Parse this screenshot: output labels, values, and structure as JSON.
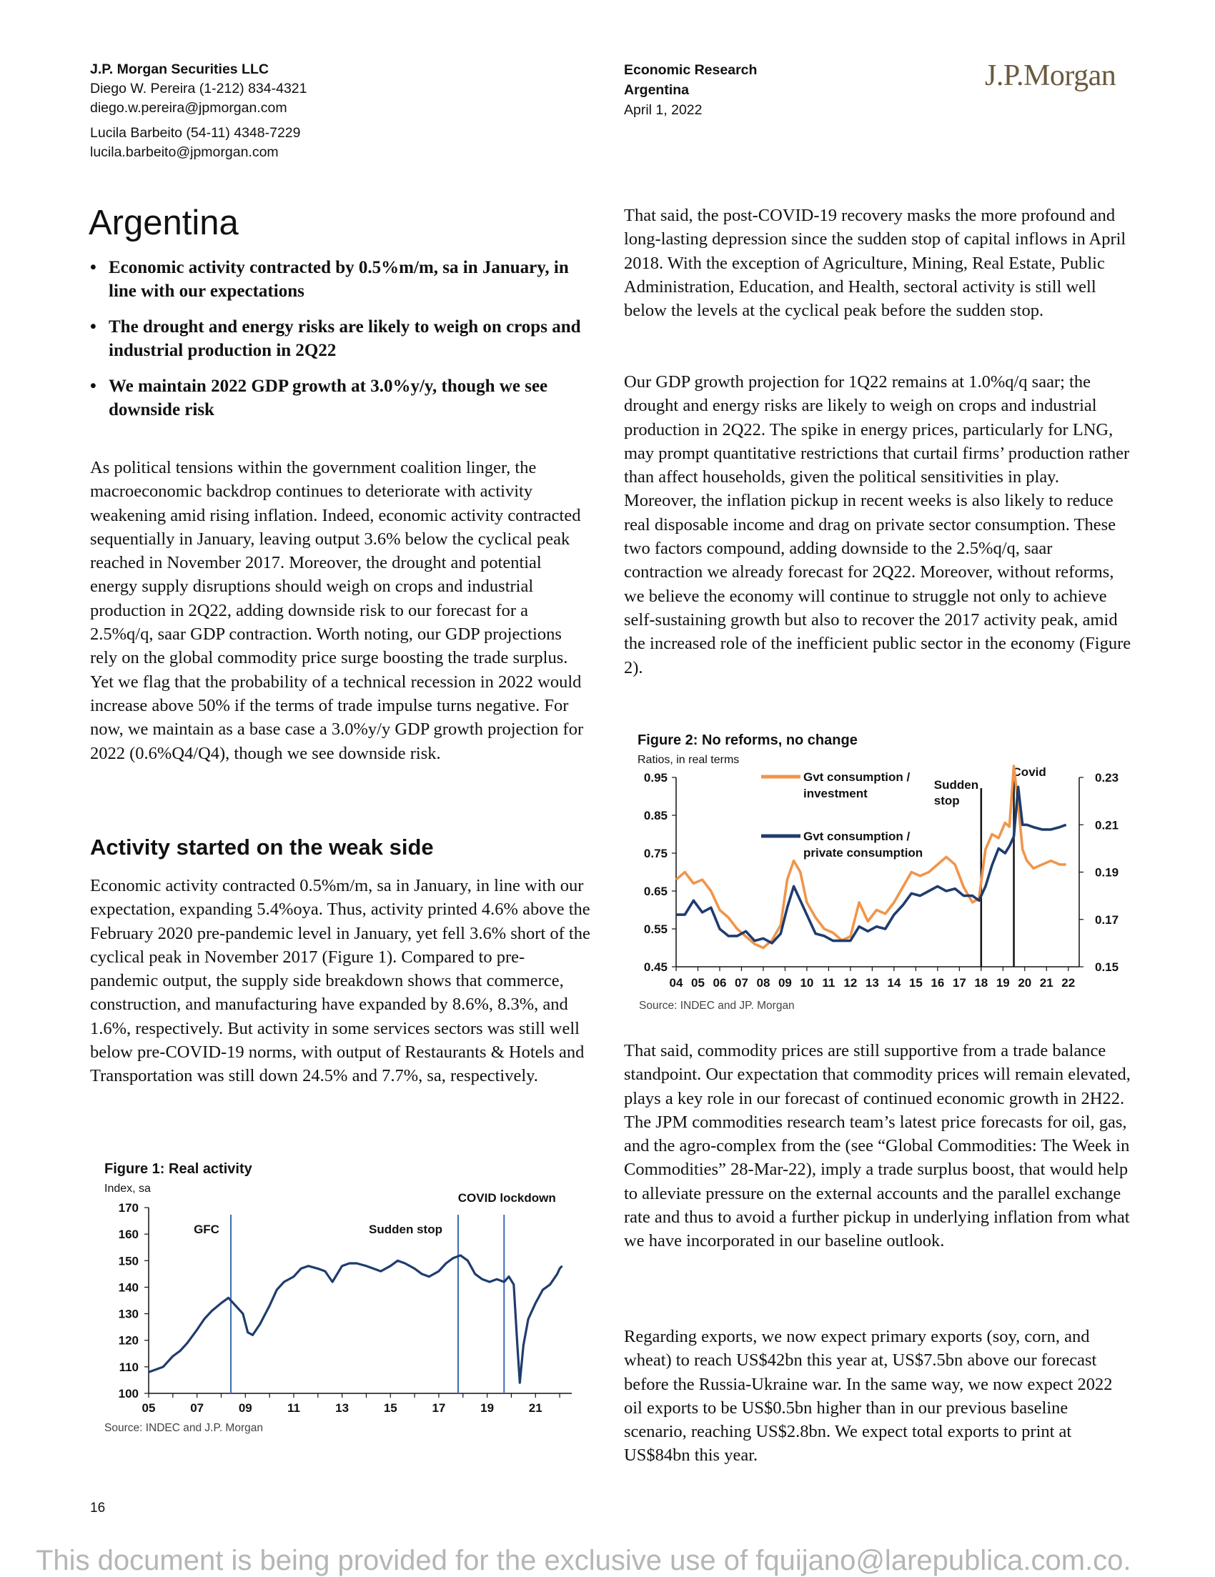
{
  "header": {
    "firm": "J.P. Morgan Securities LLC",
    "author1_line": "Diego W. Pereira (1-212) 834-4321",
    "author1_email": "diego.w.pereira@jpmorgan.com",
    "author2_line": "Lucila Barbeito (54-11) 4348-7229",
    "author2_email": "lucila.barbeito@jpmorgan.com",
    "department": "Economic Research",
    "country": "Argentina",
    "date": "April 1, 2022",
    "logo": "J.P.Morgan"
  },
  "title": "Argentina",
  "bullets": [
    "Economic activity contracted by 0.5%m/m, sa in January, in line with our expectations",
    "The drought and energy risks are likely to weigh on crops and industrial production in 2Q22",
    "We maintain 2022 GDP growth at 3.0%y/y, though we see downside risk"
  ],
  "para_left1": "As political tensions within the government coalition linger, the macroeconomic backdrop continues to deteriorate with activity weakening amid rising inflation. Indeed, economic activity contracted sequentially in January, leaving output 3.6% below the cyclical peak reached in November 2017. Moreover, the drought and potential energy supply disruptions should weigh on crops and industrial production in 2Q22, adding downside risk to our forecast for a 2.5%q/q, saar GDP contraction. Worth noting, our GDP projections rely on the global commodity price surge boosting the trade surplus. Yet we flag that the probability of a technical recession in 2022 would increase above 50% if the terms of trade impulse turns negative. For now, we maintain as a base case a 3.0%y/y GDP growth projection for 2022 (0.6%Q4/Q4), though we see downside risk.",
  "subhead": "Activity started on the weak side",
  "para_left2": "Economic activity contracted 0.5%m/m, sa in January, in line with our expectation, expanding 5.4%oya. Thus, activity printed 4.6% above the February 2020 pre-pandemic level in January, yet fell 3.6% short of the cyclical peak in November 2017 (Figure 1). Compared to pre-pandemic output, the supply side breakdown shows that commerce, construction, and manufacturing have expanded by 8.6%, 8.3%, and 1.6%, respectively. But activity in some services sectors was still well below pre-COVID-19 norms, with output of Restaurants & Hotels and Transportation was still down 24.5% and 7.7%, sa, respectively.",
  "para_right1": "That said, the post-COVID-19 recovery masks the more profound and long-lasting depression since the sudden stop of capital inflows in April 2018. With the exception of Agriculture, Mining, Real Estate, Public Administration, Education, and Health, sectoral activity is still well below the levels at the cyclical peak before the sudden stop.",
  "para_right2": "Our GDP growth projection for 1Q22 remains at 1.0%q/q saar; the drought and energy risks are likely to weigh on crops and industrial production in 2Q22. The spike in energy prices, particularly for LNG, may prompt quantitative restrictions that curtail firms’ production rather than affect households, given the political sensitivities in play. Moreover, the inflation pickup in recent weeks is also likely to reduce real disposable income and drag on private sector consumption. These two factors compound, adding downside to the 2.5%q/q, saar contraction we already forecast for 2Q22. Moreover, without reforms, we believe the economy will continue to struggle not only to achieve self-sustaining growth but also to recover the 2017 activity peak, amid the increased role of the inefficient public sector in the economy (Figure 2).",
  "para_right3": "That said, commodity prices are still supportive from a trade balance standpoint. Our expectation that commodity prices will remain elevated, plays a key role in our forecast of continued economic growth in 2H22. The JPM commodities research team’s latest price forecasts for oil, gas, and the agro-complex from the (see “Global Commodities: The Week in Commodities” 28-Mar-22), imply a trade surplus boost, that would help to alleviate pressure on the external accounts and the parallel exchange rate and thus to avoid a further pickup in underlying inflation from what we have incorporated in our baseline outlook.",
  "para_right4": "Regarding exports, we now expect primary exports (soy, corn, and wheat) to reach US$42bn this year at, US$7.5bn above our forecast before the Russia-Ukraine war. In the same way, we now expect 2022 oil exports to be US$0.5bn higher than in our previous baseline scenario, reaching US$2.8bn. We expect total exports to print at US$84bn this year.",
  "page_number": "16",
  "watermark": "This document is being provided for the exclusive use of fquijano@larepublica.com.co.",
  "colors": {
    "navy": "#1f3c6e",
    "orange": "#f0954a",
    "vline": "#3e6cb5",
    "black": "#111111"
  },
  "chart_data": [
    {
      "type": "line",
      "title": "Figure 1: Real activity",
      "ylabel": "Index, sa",
      "source": "Source: INDEC and J.P. Morgan",
      "ylim": [
        100,
        170
      ],
      "yticks": [
        "100",
        "110",
        "120",
        "130",
        "140",
        "150",
        "160",
        "170"
      ],
      "xlim": [
        2005,
        2022.5
      ],
      "xticks": [
        "05",
        "07",
        "09",
        "11",
        "13",
        "15",
        "17",
        "19",
        "21"
      ],
      "annotations": [
        {
          "label": "GFC",
          "x": 2008.4
        },
        {
          "label": "Sudden stop",
          "x": 2017.8
        },
        {
          "label": "COVID lockdown",
          "x": 2019.7
        }
      ],
      "series": [
        {
          "x": [
            2005.0,
            2005.3,
            2005.6,
            2006.0,
            2006.3,
            2006.6,
            2007.0,
            2007.3,
            2007.6,
            2008.0,
            2008.3,
            2008.6,
            2008.9,
            2009.1,
            2009.3,
            2009.6,
            2010.0,
            2010.3,
            2010.6,
            2011.0,
            2011.3,
            2011.6,
            2012.0,
            2012.3,
            2012.6,
            2013.0,
            2013.3,
            2013.6,
            2014.0,
            2014.3,
            2014.6,
            2015.0,
            2015.3,
            2015.6,
            2016.0,
            2016.3,
            2016.6,
            2017.0,
            2017.3,
            2017.6,
            2017.9,
            2018.2,
            2018.5,
            2018.8,
            2019.1,
            2019.4,
            2019.7,
            2019.9,
            2020.1,
            2020.25,
            2020.35,
            2020.5,
            2020.7,
            2021.0,
            2021.3,
            2021.6,
            2021.9,
            2022.0,
            2022.1
          ],
          "y": [
            108,
            109,
            110,
            114,
            116,
            119,
            124,
            128,
            131,
            134,
            136,
            133,
            130,
            123,
            122,
            126,
            133,
            139,
            142,
            144,
            147,
            148,
            147,
            146,
            142,
            148,
            149,
            149,
            148,
            147,
            146,
            148,
            150,
            149,
            147,
            145,
            144,
            146,
            149,
            151,
            152,
            150,
            145,
            143,
            142,
            143,
            142,
            144,
            141,
            118,
            104,
            118,
            128,
            134,
            139,
            141,
            145,
            147,
            148
          ]
        }
      ]
    },
    {
      "type": "line",
      "title": "Figure 2: No reforms, no change",
      "ylabel": "Ratios, in real terms",
      "source": "Source: INDEC and JP. Morgan",
      "ylim_left": [
        0.45,
        0.95
      ],
      "yticks_left": [
        "0.45",
        "0.55",
        "0.65",
        "0.75",
        "0.85",
        "0.95"
      ],
      "ylim_right": [
        0.15,
        0.23
      ],
      "yticks_right": [
        "0.15",
        "0.17",
        "0.19",
        "0.21",
        "0.23"
      ],
      "xlim": [
        2004,
        2022.5
      ],
      "xticks": [
        "04",
        "05",
        "06",
        "07",
        "08",
        "09",
        "10",
        "11",
        "12",
        "13",
        "14",
        "15",
        "16",
        "17",
        "18",
        "19",
        "20",
        "21",
        "22"
      ],
      "legend": [
        "Gvt consumption / investment",
        "Gvt consumption / private consumption"
      ],
      "annotations": [
        {
          "label": "Sudden stop",
          "x": 2018.0
        },
        {
          "label": "Covid",
          "x": 2019.5
        }
      ],
      "series": [
        {
          "name": "Gvt consumption / investment",
          "axis": "left",
          "x": [
            2004.0,
            2004.4,
            2004.8,
            2005.2,
            2005.6,
            2006.0,
            2006.4,
            2006.8,
            2007.2,
            2007.6,
            2008.0,
            2008.4,
            2008.8,
            2009.1,
            2009.4,
            2009.7,
            2010.0,
            2010.4,
            2010.8,
            2011.2,
            2011.6,
            2012.0,
            2012.4,
            2012.8,
            2013.2,
            2013.6,
            2014.0,
            2014.4,
            2014.8,
            2015.2,
            2015.6,
            2016.0,
            2016.4,
            2016.8,
            2017.2,
            2017.6,
            2017.9,
            2018.2,
            2018.5,
            2018.8,
            2019.1,
            2019.3,
            2019.5,
            2019.7,
            2019.9,
            2020.1,
            2020.4,
            2020.8,
            2021.2,
            2021.6,
            2021.9
          ],
          "y": [
            0.68,
            0.7,
            0.67,
            0.68,
            0.65,
            0.6,
            0.58,
            0.55,
            0.53,
            0.51,
            0.5,
            0.52,
            0.56,
            0.68,
            0.73,
            0.7,
            0.62,
            0.58,
            0.55,
            0.54,
            0.52,
            0.53,
            0.62,
            0.57,
            0.6,
            0.59,
            0.62,
            0.66,
            0.7,
            0.69,
            0.7,
            0.72,
            0.74,
            0.72,
            0.66,
            0.62,
            0.63,
            0.76,
            0.8,
            0.79,
            0.83,
            0.82,
            0.98,
            0.88,
            0.76,
            0.73,
            0.71,
            0.72,
            0.73,
            0.72,
            0.72
          ]
        },
        {
          "name": "Gvt consumption / private consumption",
          "axis": "right",
          "x": [
            2004.0,
            2004.4,
            2004.8,
            2005.2,
            2005.6,
            2006.0,
            2006.4,
            2006.8,
            2007.2,
            2007.6,
            2008.0,
            2008.4,
            2008.8,
            2009.1,
            2009.4,
            2009.7,
            2010.0,
            2010.4,
            2010.8,
            2011.2,
            2011.6,
            2012.0,
            2012.4,
            2012.8,
            2013.2,
            2013.6,
            2014.0,
            2014.4,
            2014.8,
            2015.2,
            2015.6,
            2016.0,
            2016.4,
            2016.8,
            2017.2,
            2017.6,
            2017.9,
            2018.2,
            2018.5,
            2018.8,
            2019.1,
            2019.3,
            2019.5,
            2019.7,
            2019.9,
            2020.1,
            2020.4,
            2020.8,
            2021.2,
            2021.6,
            2021.9
          ],
          "y": [
            0.172,
            0.172,
            0.178,
            0.173,
            0.175,
            0.166,
            0.163,
            0.163,
            0.165,
            0.161,
            0.162,
            0.16,
            0.164,
            0.175,
            0.184,
            0.178,
            0.172,
            0.164,
            0.163,
            0.161,
            0.161,
            0.161,
            0.167,
            0.165,
            0.167,
            0.166,
            0.172,
            0.176,
            0.181,
            0.18,
            0.182,
            0.184,
            0.182,
            0.183,
            0.18,
            0.18,
            0.178,
            0.184,
            0.193,
            0.2,
            0.198,
            0.201,
            0.205,
            0.226,
            0.21,
            0.21,
            0.209,
            0.208,
            0.208,
            0.209,
            0.21
          ]
        }
      ]
    }
  ]
}
